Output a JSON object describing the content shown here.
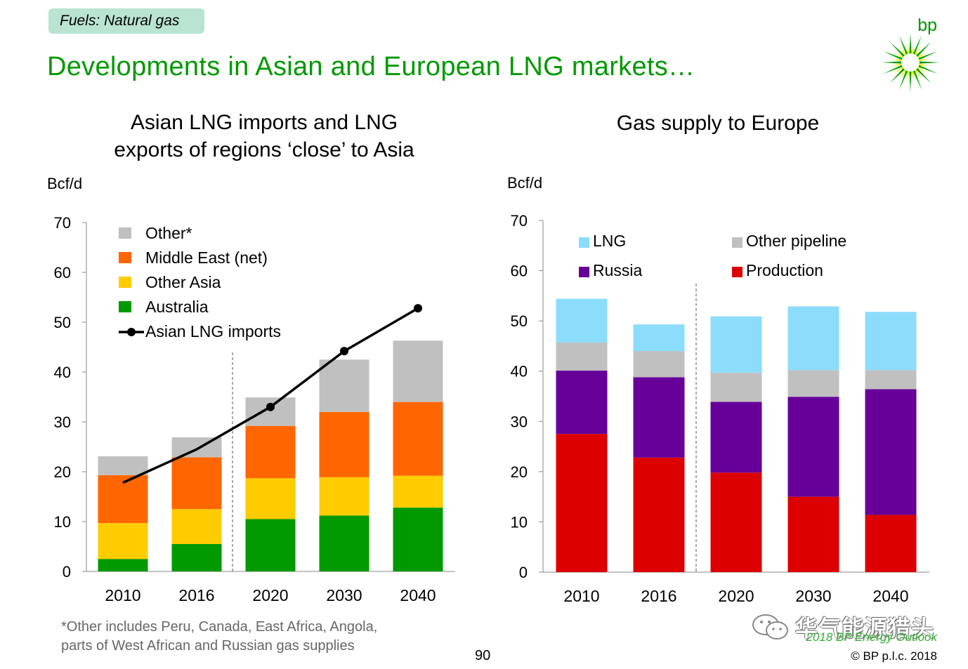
{
  "header": {
    "tag": "Fuels: Natural gas",
    "title": "Developments in Asian and European LNG markets…",
    "logo_text": "bp"
  },
  "colors": {
    "brand_green": "#009900",
    "gray": "#c0c0c0",
    "orange": "#ff6600",
    "yellow": "#ffcc00",
    "green": "#009900",
    "lightblue": "#8cdcfc",
    "purple": "#660099",
    "red": "#dd0000"
  },
  "chart_data": [
    {
      "type": "bar",
      "stacked": true,
      "title_lines": [
        "Asian LNG imports and LNG",
        "exports of regions ‘close’ to Asia"
      ],
      "unit_label": "Bcf/d",
      "categories": [
        "2010",
        "2016",
        "2020",
        "2030",
        "2040"
      ],
      "ylim": [
        0,
        70
      ],
      "yticks": [
        "0",
        "10",
        "20",
        "30",
        "40",
        "50",
        "60",
        "70"
      ],
      "divider_after_index": 1,
      "series": [
        {
          "name": "Australia",
          "color": "#009900",
          "values": [
            2.5,
            5.5,
            10.5,
            11.2,
            12.8
          ]
        },
        {
          "name": "Other Asia",
          "color": "#ffcc00",
          "values": [
            7.2,
            7.0,
            8.2,
            7.7,
            6.4
          ]
        },
        {
          "name": "Middle East (net)",
          "color": "#ff6600",
          "values": [
            9.6,
            10.4,
            10.5,
            13.1,
            14.8
          ]
        },
        {
          "name": "Other*",
          "color": "#c0c0c0",
          "values": [
            3.8,
            4.0,
            5.7,
            10.5,
            12.3
          ]
        }
      ],
      "line_series": {
        "name": "Asian LNG imports",
        "color": "#000000",
        "values": [
          17.8,
          24.5,
          33.0,
          44.2,
          52.8
        ],
        "marker_indices": [
          2,
          3,
          4
        ]
      },
      "legend": [
        "Other*",
        "Middle East (net)",
        "Other Asia",
        "Australia",
        "Asian LNG imports"
      ]
    },
    {
      "type": "bar",
      "stacked": true,
      "title_lines": [
        "Gas supply to Europe"
      ],
      "unit_label": "Bcf/d",
      "categories": [
        "2010",
        "2016",
        "2020",
        "2030",
        "2040"
      ],
      "ylim": [
        0,
        70
      ],
      "yticks": [
        "0",
        "10",
        "20",
        "30",
        "40",
        "50",
        "60",
        "70"
      ],
      "divider_after_index": 1,
      "series": [
        {
          "name": "Production",
          "color": "#dd0000",
          "values": [
            27.5,
            22.8,
            19.8,
            15.0,
            11.4
          ]
        },
        {
          "name": "Russia",
          "color": "#660099",
          "values": [
            12.6,
            16.0,
            14.1,
            19.9,
            25.0
          ]
        },
        {
          "name": "Other pipeline",
          "color": "#c0c0c0",
          "values": [
            5.6,
            5.2,
            5.8,
            5.3,
            3.8
          ]
        },
        {
          "name": "LNG",
          "color": "#8cdcfc",
          "values": [
            8.7,
            5.3,
            11.2,
            12.7,
            11.6
          ]
        }
      ],
      "legend": [
        "LNG",
        "Other pipeline",
        "Russia",
        "Production"
      ]
    }
  ],
  "footer": {
    "footnote_line1": "*Other includes Peru, Canada, East Africa, Angola,",
    "footnote_line2": "parts of West African and Russian gas supplies",
    "page_number": "90",
    "source": "2018 BP Energy Outlook",
    "copyright": "© BP p.l.c. 2018",
    "watermark": "华气能源猎头"
  }
}
